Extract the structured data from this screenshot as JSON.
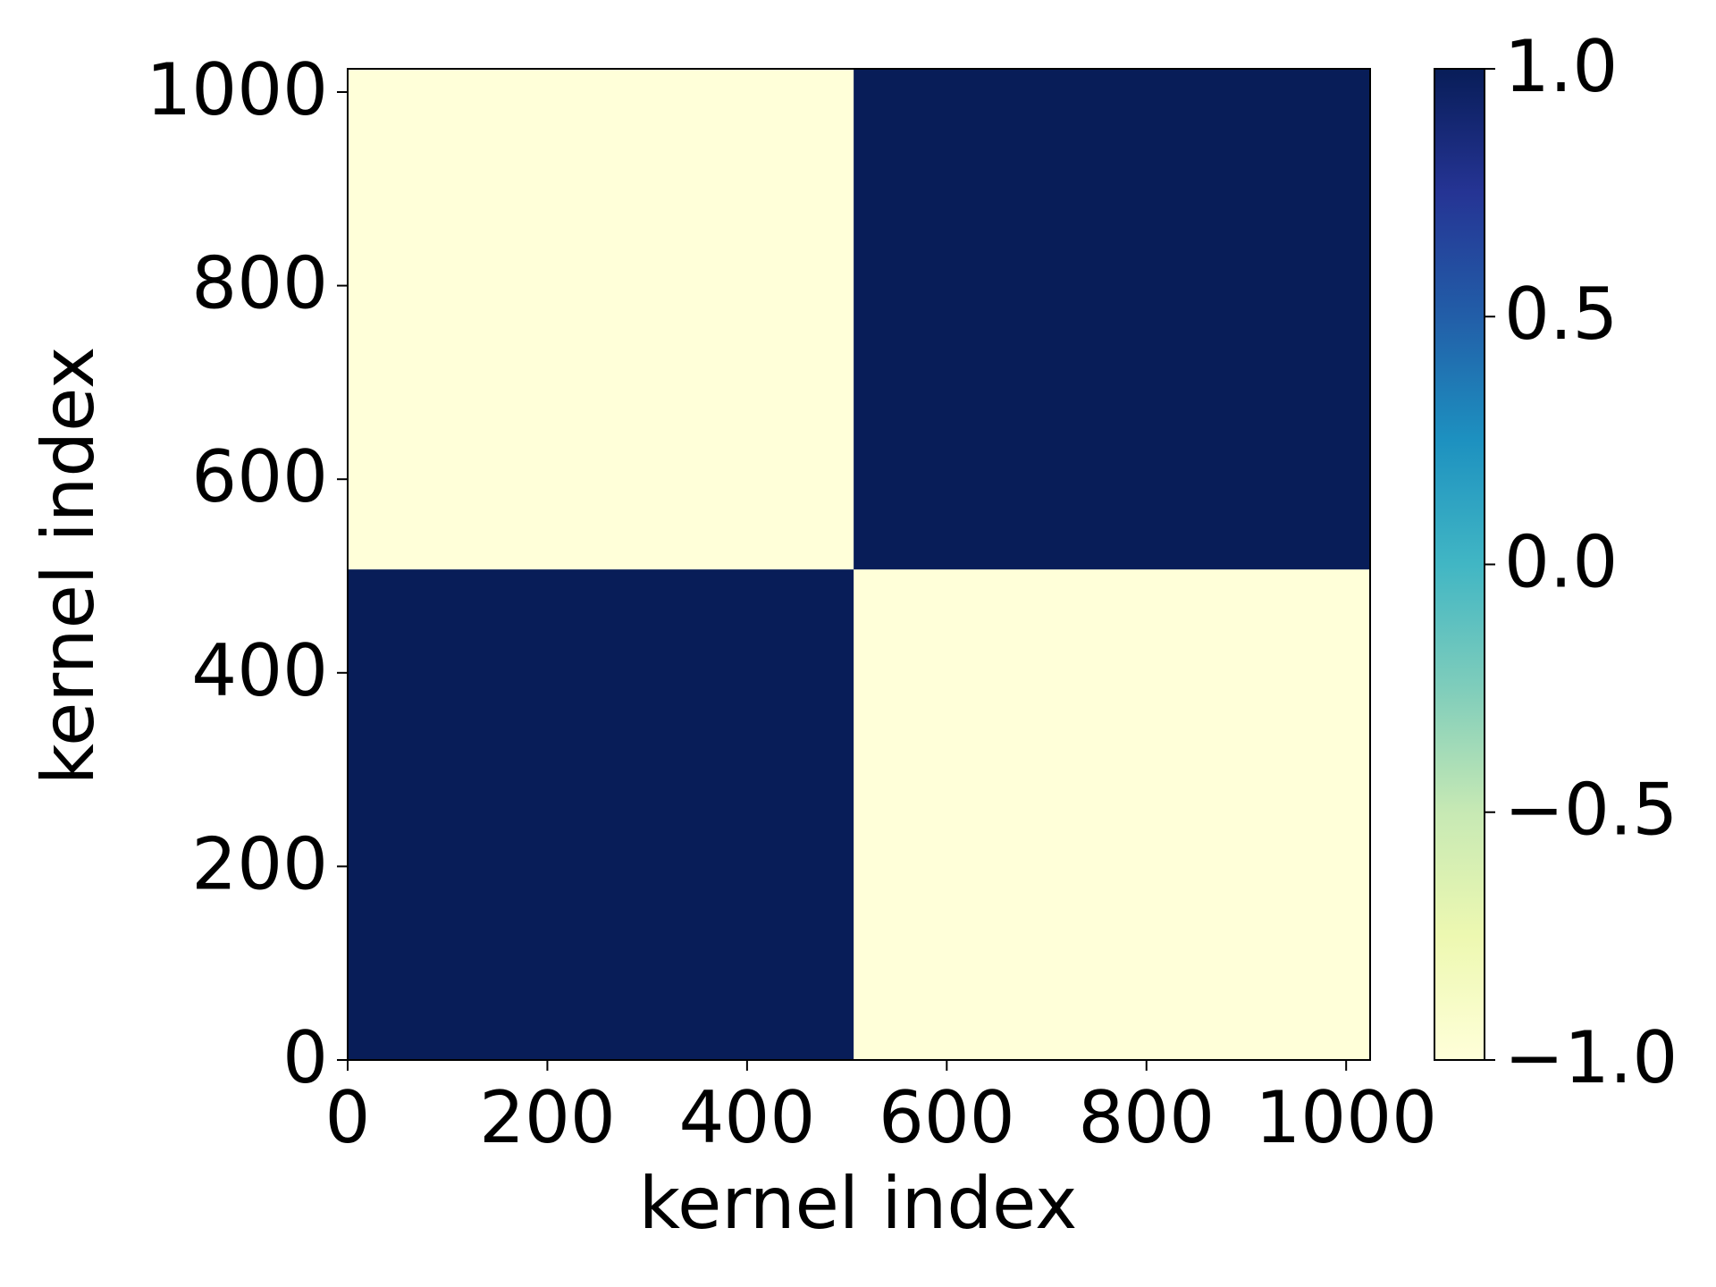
{
  "chart_data": {
    "type": "heatmap",
    "x_label": "kernel index",
    "y_label": "kernel index",
    "x_edges": [
      0,
      507,
      1024
    ],
    "y_edges": [
      0,
      507,
      1024
    ],
    "values": [
      [
        1,
        -1
      ],
      [
        -1,
        1
      ]
    ],
    "xlim": [
      0,
      1024
    ],
    "ylim": [
      0,
      1024
    ],
    "xticks": [
      0,
      200,
      400,
      600,
      800,
      1000
    ],
    "yticks": [
      0,
      200,
      400,
      600,
      800,
      1000
    ],
    "colormap": "YlGnBu",
    "colormap_colors": [
      "#ffffd9",
      "#edf8b1",
      "#c7e9b4",
      "#7fcdbb",
      "#41b6c4",
      "#1d91c0",
      "#225ea8",
      "#253494",
      "#081d58"
    ],
    "clim": [
      -1,
      1
    ],
    "cticks": [
      {
        "value": -1,
        "label": "−1.0"
      },
      {
        "value": -0.5,
        "label": "−0.5"
      },
      {
        "value": 0,
        "label": "0.0"
      },
      0.5,
      {
        "value": 1,
        "label": "1.0"
      }
    ]
  }
}
